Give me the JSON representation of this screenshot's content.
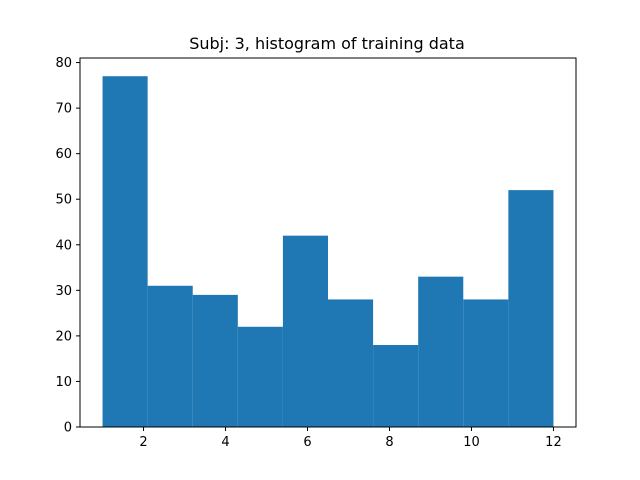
{
  "chart_data": {
    "type": "bar",
    "title": "Subj: 3, histogram of training data",
    "xlabel": "",
    "ylabel": "",
    "bin_edges": [
      1,
      2.1,
      3.2,
      4.3,
      5.4,
      6.5,
      7.6,
      8.7,
      9.8,
      10.9,
      12
    ],
    "values": [
      77,
      31,
      29,
      22,
      42,
      28,
      18,
      33,
      28,
      52
    ],
    "xlim": [
      0.45,
      12.55
    ],
    "ylim": [
      0,
      81
    ],
    "xticks": [
      2,
      4,
      6,
      8,
      10,
      12
    ],
    "yticks": [
      0,
      10,
      20,
      30,
      40,
      50,
      60,
      70,
      80
    ],
    "bar_color": "#1f77b4",
    "grid": false,
    "legend": "none"
  }
}
